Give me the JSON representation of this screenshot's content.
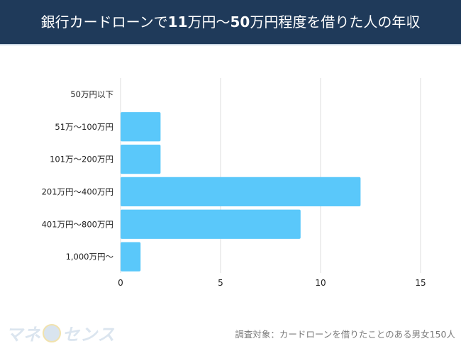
{
  "header": {
    "title_part1": "銀行カードローンで",
    "title_bold1": "11",
    "title_part2": "万円〜",
    "title_bold2": "50",
    "title_part3": "万円程度を借りた人の年収",
    "bg_color": "#1f3a5a"
  },
  "chart_data": {
    "type": "bar",
    "orientation": "horizontal",
    "title": "銀行カードローンで11万円〜50万円程度を借りた人の年収",
    "categories": [
      "50万円以下",
      "51万〜100万円",
      "101万〜200万円",
      "201万円〜400万円",
      "401万円〜800万円",
      "1,000万円〜"
    ],
    "values": [
      0,
      2,
      2,
      12,
      9,
      1
    ],
    "xlabel": "",
    "ylabel": "",
    "xlim": [
      0,
      15
    ],
    "xticks": [
      0,
      5,
      10,
      15
    ],
    "grid": true,
    "bar_color": "#5ac8fa",
    "legend": "none"
  },
  "footer": {
    "logo_text_left": "マネ",
    "logo_text_right": "センス",
    "note": "調査対象：カードローンを借りたことのある男女150人"
  }
}
